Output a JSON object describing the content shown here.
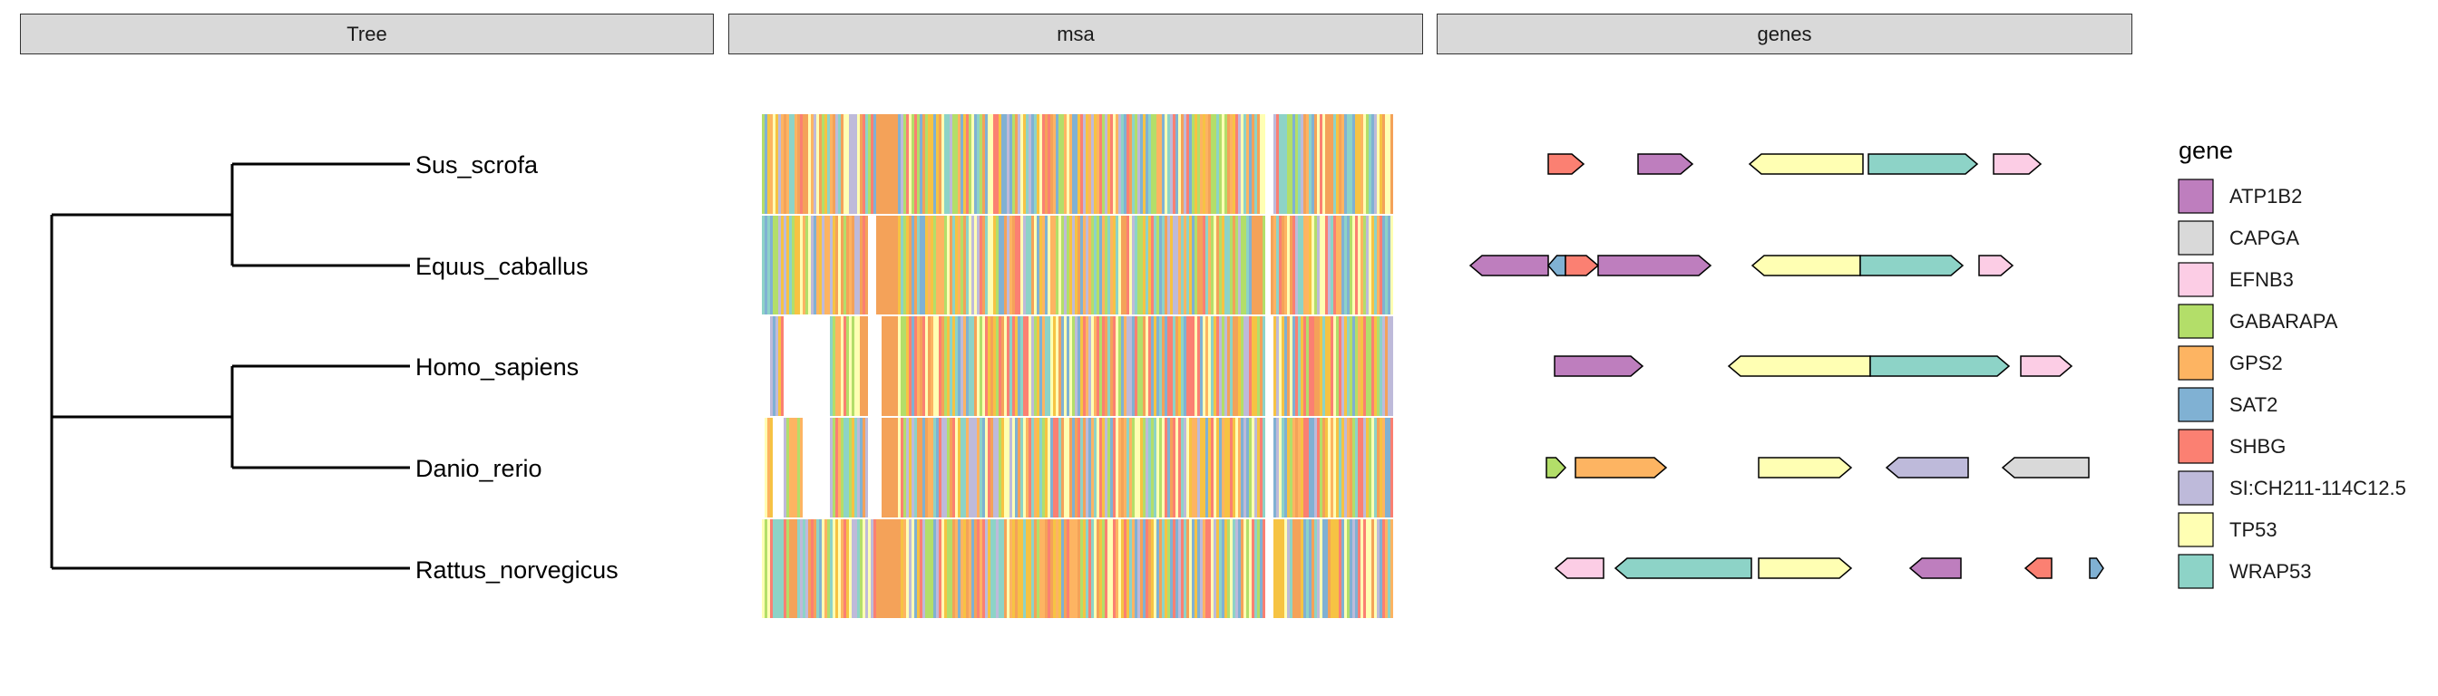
{
  "panels": {
    "tree": "Tree",
    "msa": "msa",
    "genes": "genes"
  },
  "taxa": [
    "Sus_scrofa",
    "Equus_caballus",
    "Homo_sapiens",
    "Danio_rerio",
    "Rattus_norvegicus"
  ],
  "legend": {
    "title": "gene",
    "entries": [
      {
        "name": "ATP1B2",
        "color": "#BE7EBE"
      },
      {
        "name": "CAPGA",
        "color": "#D9D9D9"
      },
      {
        "name": "EFNB3",
        "color": "#FCCDE5"
      },
      {
        "name": "GABARAPA",
        "color": "#B3DE69"
      },
      {
        "name": "GPS2",
        "color": "#FDB462"
      },
      {
        "name": "SAT2",
        "color": "#80B1D3"
      },
      {
        "name": "SHBG",
        "color": "#FB8072"
      },
      {
        "name": "SI:CH211-114C12.5",
        "color": "#BEBADA"
      },
      {
        "name": "TP53",
        "color": "#FFFFB3"
      },
      {
        "name": "WRAP53",
        "color": "#8DD3C7"
      }
    ]
  },
  "msa_palette": [
    "#F4A259",
    "#8DD3C7",
    "#80B1D3",
    "#FB8072",
    "#F6C343",
    "#B3DE69",
    "#FFFFB3",
    "#BEBADA",
    "#FDB462"
  ],
  "genes_per_taxon": [
    [
      {
        "gene": "SHBG",
        "dir": 1
      },
      {
        "gene": "ATP1B2",
        "dir": 1
      },
      {
        "gene": "TP53",
        "dir": -1
      },
      {
        "gene": "WRAP53",
        "dir": 1
      },
      {
        "gene": "EFNB3",
        "dir": 1
      }
    ],
    [
      {
        "gene": "ATP1B2",
        "dir": -1
      },
      {
        "gene": "SAT2",
        "dir": -1
      },
      {
        "gene": "SHBG",
        "dir": 1
      },
      {
        "gene": "ATP1B2",
        "dir": 1
      },
      {
        "gene": "TP53",
        "dir": -1
      },
      {
        "gene": "WRAP53",
        "dir": 1
      },
      {
        "gene": "EFNB3",
        "dir": 1
      }
    ],
    [
      {
        "gene": "ATP1B2",
        "dir": 1
      },
      {
        "gene": "TP53",
        "dir": -1
      },
      {
        "gene": "WRAP53",
        "dir": 1
      },
      {
        "gene": "EFNB3",
        "dir": 1
      }
    ],
    [
      {
        "gene": "GABARAPA",
        "dir": 1
      },
      {
        "gene": "GPS2",
        "dir": 1
      },
      {
        "gene": "TP53",
        "dir": 1
      },
      {
        "gene": "SI:CH211-114C12.5",
        "dir": -1
      },
      {
        "gene": "CAPGA",
        "dir": -1
      }
    ],
    [
      {
        "gene": "EFNB3",
        "dir": -1
      },
      {
        "gene": "WRAP53",
        "dir": -1
      },
      {
        "gene": "TP53",
        "dir": 1
      },
      {
        "gene": "ATP1B2",
        "dir": -1
      },
      {
        "gene": "SHBG",
        "dir": -1
      },
      {
        "gene": "SAT2",
        "dir": 1
      }
    ]
  ]
}
